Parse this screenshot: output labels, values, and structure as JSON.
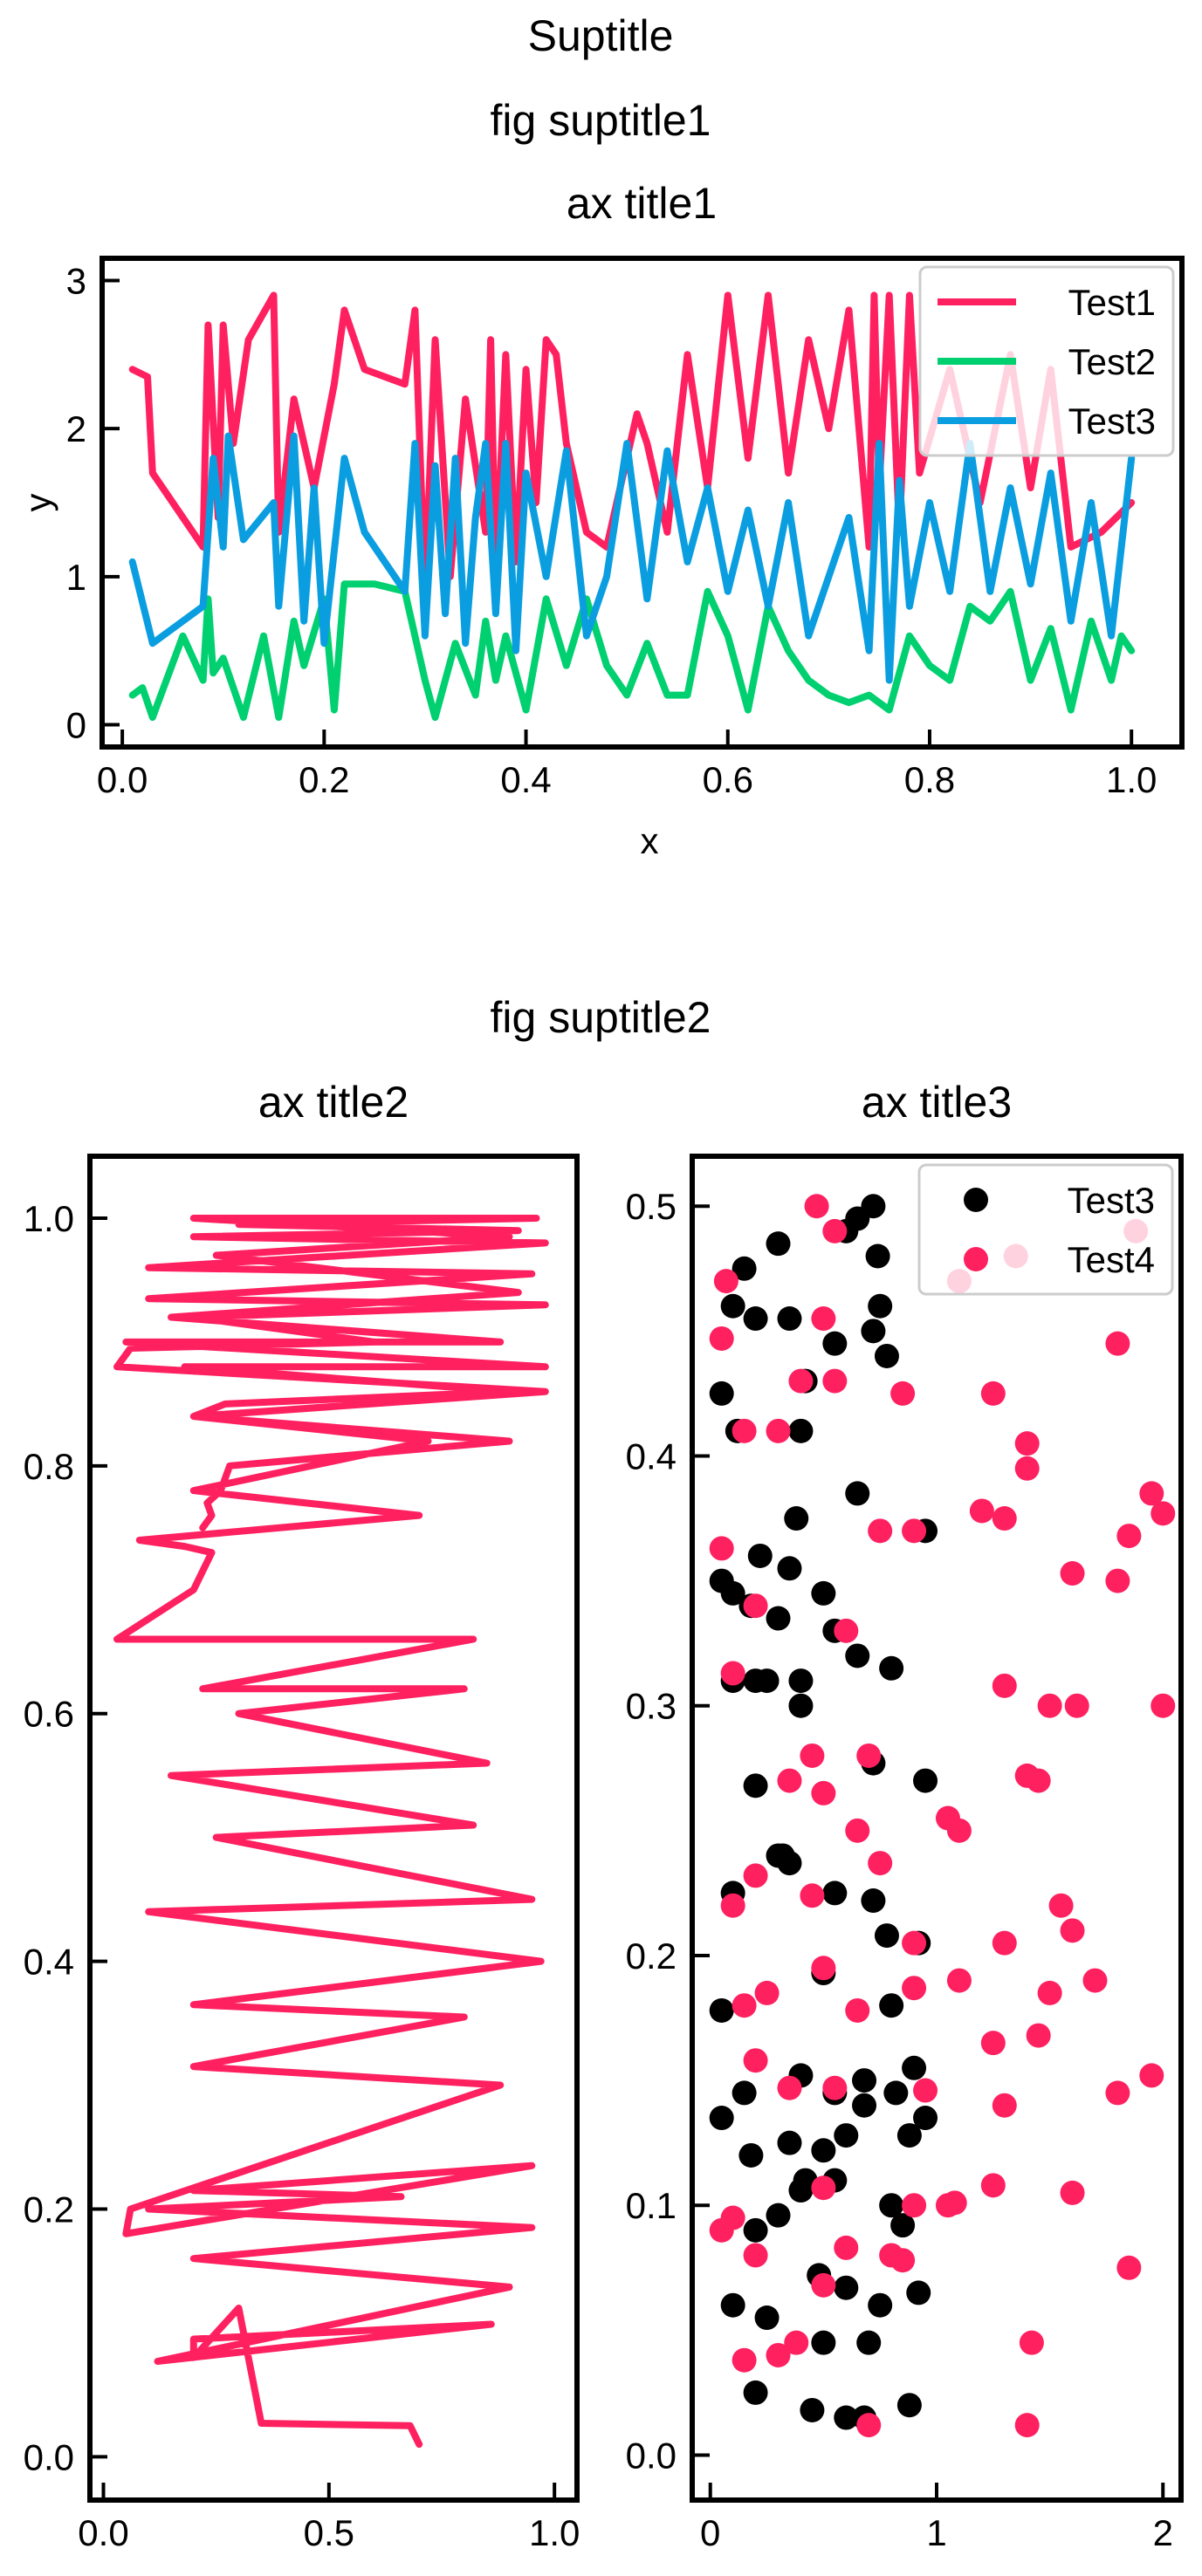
{
  "figure": {
    "suptitle": "Suptitle",
    "subfig1_title": "fig suptitle1",
    "subfig2_title": "fig suptitle2"
  },
  "colors": {
    "red": "#ff2060",
    "green": "#00d070",
    "blue": "#0a9ee0",
    "black": "#000000"
  },
  "chart_data": [
    {
      "type": "line",
      "title": "ax title1",
      "xlabel": "x",
      "ylabel": "y",
      "xlim": [
        -0.02,
        1.05
      ],
      "ylim": [
        -0.15,
        3.15
      ],
      "xticks": [
        0.0,
        0.2,
        0.4,
        0.6,
        0.8,
        1.0
      ],
      "xticklabels": [
        "0.0",
        "0.2",
        "0.4",
        "0.6",
        "0.8",
        "1.0"
      ],
      "yticks": [
        0,
        1,
        2,
        3
      ],
      "yticklabels": [
        "0",
        "1",
        "2",
        "3"
      ],
      "legend": {
        "position": "top-right",
        "entries": [
          "Test1",
          "Test2",
          "Test3"
        ]
      },
      "series": [
        {
          "name": "Test1",
          "color": "#ff2060",
          "x": [
            0.01,
            0.025,
            0.03,
            0.08,
            0.085,
            0.095,
            0.1,
            0.11,
            0.125,
            0.15,
            0.155,
            0.17,
            0.19,
            0.21,
            0.22,
            0.24,
            0.28,
            0.29,
            0.3,
            0.31,
            0.325,
            0.34,
            0.36,
            0.365,
            0.37,
            0.38,
            0.39,
            0.4,
            0.41,
            0.42,
            0.43,
            0.44,
            0.46,
            0.48,
            0.51,
            0.52,
            0.54,
            0.56,
            0.58,
            0.6,
            0.62,
            0.64,
            0.66,
            0.68,
            0.7,
            0.72,
            0.74,
            0.745,
            0.75,
            0.76,
            0.77,
            0.78,
            0.79,
            0.82,
            0.85,
            0.88,
            0.9,
            0.92,
            0.94,
            0.97,
            1.0
          ],
          "y": [
            2.4,
            2.35,
            1.7,
            1.2,
            2.7,
            1.4,
            2.7,
            1.9,
            2.6,
            2.9,
            1.3,
            2.2,
            1.6,
            2.3,
            2.8,
            2.4,
            2.3,
            2.8,
            0.9,
            2.6,
            1.0,
            2.2,
            1.3,
            2.6,
            1.0,
            2.5,
            1.1,
            2.4,
            1.5,
            2.6,
            2.5,
            1.9,
            1.3,
            1.2,
            2.1,
            1.9,
            1.3,
            2.5,
            1.6,
            2.9,
            1.8,
            2.9,
            1.7,
            2.6,
            2.0,
            2.8,
            1.2,
            2.9,
            1.6,
            2.9,
            1.3,
            2.9,
            1.7,
            2.4,
            1.5,
            2.5,
            1.6,
            2.4,
            1.2,
            1.3,
            1.5
          ]
        },
        {
          "name": "Test2",
          "color": "#00d070",
          "x": [
            0.01,
            0.02,
            0.03,
            0.06,
            0.08,
            0.085,
            0.09,
            0.1,
            0.12,
            0.14,
            0.155,
            0.17,
            0.18,
            0.2,
            0.21,
            0.22,
            0.25,
            0.28,
            0.3,
            0.31,
            0.33,
            0.35,
            0.36,
            0.37,
            0.38,
            0.4,
            0.42,
            0.44,
            0.46,
            0.48,
            0.5,
            0.52,
            0.54,
            0.56,
            0.58,
            0.6,
            0.62,
            0.64,
            0.66,
            0.68,
            0.7,
            0.72,
            0.74,
            0.76,
            0.78,
            0.8,
            0.82,
            0.84,
            0.86,
            0.88,
            0.9,
            0.92,
            0.94,
            0.96,
            0.98,
            0.99,
            1.0
          ],
          "y": [
            0.2,
            0.25,
            0.05,
            0.6,
            0.3,
            0.85,
            0.35,
            0.45,
            0.05,
            0.6,
            0.05,
            0.7,
            0.4,
            0.85,
            0.1,
            0.95,
            0.95,
            0.9,
            0.3,
            0.05,
            0.55,
            0.2,
            0.7,
            0.3,
            0.6,
            0.1,
            0.85,
            0.4,
            0.85,
            0.4,
            0.2,
            0.55,
            0.2,
            0.2,
            0.9,
            0.6,
            0.1,
            0.8,
            0.5,
            0.3,
            0.2,
            0.15,
            0.2,
            0.1,
            0.6,
            0.4,
            0.3,
            0.8,
            0.7,
            0.9,
            0.3,
            0.65,
            0.1,
            0.7,
            0.3,
            0.6,
            0.5
          ]
        },
        {
          "name": "Test3",
          "color": "#0a9ee0",
          "x": [
            0.01,
            0.03,
            0.08,
            0.09,
            0.1,
            0.105,
            0.12,
            0.15,
            0.155,
            0.17,
            0.18,
            0.19,
            0.2,
            0.22,
            0.24,
            0.28,
            0.29,
            0.3,
            0.31,
            0.32,
            0.33,
            0.34,
            0.35,
            0.36,
            0.37,
            0.38,
            0.39,
            0.4,
            0.42,
            0.44,
            0.46,
            0.48,
            0.5,
            0.52,
            0.54,
            0.56,
            0.58,
            0.6,
            0.62,
            0.64,
            0.66,
            0.68,
            0.7,
            0.72,
            0.74,
            0.75,
            0.76,
            0.77,
            0.78,
            0.8,
            0.82,
            0.84,
            0.86,
            0.88,
            0.9,
            0.92,
            0.94,
            0.96,
            0.98,
            1.0
          ],
          "y": [
            1.1,
            0.55,
            0.8,
            1.8,
            1.2,
            1.95,
            1.25,
            1.5,
            0.8,
            1.95,
            0.7,
            1.6,
            0.55,
            1.8,
            1.3,
            0.9,
            1.9,
            0.6,
            1.75,
            0.75,
            1.8,
            0.55,
            1.4,
            1.9,
            0.75,
            1.9,
            0.5,
            1.7,
            1.0,
            1.85,
            0.6,
            1.0,
            1.9,
            0.85,
            1.85,
            1.1,
            1.6,
            0.9,
            1.45,
            0.8,
            1.5,
            0.6,
            1.0,
            1.4,
            0.5,
            1.9,
            0.3,
            1.65,
            0.8,
            1.5,
            0.9,
            1.9,
            0.9,
            1.6,
            0.95,
            1.7,
            0.7,
            1.5,
            0.6,
            1.8
          ]
        }
      ]
    },
    {
      "type": "line",
      "title": "ax title2",
      "xlim": [
        -0.03,
        1.05
      ],
      "ylim": [
        -0.035,
        1.05
      ],
      "xticks": [
        0.0,
        0.5,
        1.0
      ],
      "xticklabels": [
        "0.0",
        "0.5",
        "1.0"
      ],
      "yticks": [
        0.0,
        0.2,
        0.4,
        0.6,
        0.8,
        1.0
      ],
      "yticklabels": [
        "0.0",
        "0.2",
        "0.4",
        "0.6",
        "0.8",
        "1.0"
      ],
      "series": [
        {
          "name": "",
          "color": "#ff2060",
          "x": [
            0.7,
            0.68,
            0.35,
            0.3,
            0.2,
            0.2,
            0.86,
            0.12,
            0.9,
            0.2,
            0.95,
            0.1,
            0.66,
            0.2,
            0.95,
            0.05,
            0.06,
            0.88,
            0.2,
            0.8,
            0.2,
            0.97,
            0.1,
            0.95,
            0.25,
            0.82,
            0.15,
            0.85,
            0.3,
            0.8,
            0.22,
            0.82,
            0.03,
            0.2,
            0.24,
            0.18,
            0.08,
            0.7,
            0.2,
            0.72,
            0.2,
            0.98,
            0.03,
            0.06,
            0.6,
            0.2,
            0.98,
            0.1,
            0.95,
            0.1,
            0.98,
            0.2,
            0.92,
            0.3,
            0.96,
            0.2,
            0.9,
            0.25,
            0.92,
            0.15,
            0.88,
            0.05,
            0.98,
            0.18,
            0.9,
            0.27,
            0.2,
            0.9,
            0.28,
            0.26,
            0.23,
            0.24,
            0.22
          ],
          "y": [
            0.01,
            0.025,
            0.027,
            0.12,
            0.08,
            0.095,
            0.107,
            0.077,
            0.137,
            0.16,
            0.185,
            0.2,
            0.21,
            0.215,
            0.235,
            0.18,
            0.2,
            0.3,
            0.315,
            0.355,
            0.365,
            0.4,
            0.44,
            0.45,
            0.5,
            0.51,
            0.55,
            0.56,
            0.6,
            0.62,
            0.62,
            0.66,
            0.66,
            0.7,
            0.73,
            0.735,
            0.74,
            0.76,
            0.78,
            0.82,
            0.84,
            0.86,
            0.88,
            0.895,
            0.9,
            0.92,
            0.93,
            0.935,
            0.955,
            0.96,
            0.98,
            0.985,
            0.99,
            0.995,
            1.0,
            1.0,
            0.985,
            0.97,
            0.94,
            0.92,
            0.9,
            0.9,
            0.88,
            0.88,
            0.86,
            0.85,
            0.84,
            0.82,
            0.8,
            0.78,
            0.77,
            0.76,
            0.75
          ]
        }
      ]
    },
    {
      "type": "scatter",
      "title": "ax title3",
      "xlim": [
        -0.08,
        2.08
      ],
      "ylim": [
        -0.018,
        0.52
      ],
      "xticks": [
        0,
        1,
        2
      ],
      "xticklabels": [
        "0",
        "1",
        "2"
      ],
      "yticks": [
        0.0,
        0.1,
        0.2,
        0.3,
        0.4,
        0.5
      ],
      "yticklabels": [
        "0.0",
        "0.1",
        "0.2",
        "0.3",
        "0.4",
        "0.5"
      ],
      "legend": {
        "position": "top-right",
        "entries": [
          "Test3",
          "Test4"
        ]
      },
      "series": [
        {
          "name": "Test3",
          "color": "#000000",
          "x": [
            0.72,
            0.65,
            0.74,
            0.6,
            0.3,
            0.75,
            0.42,
            0.35,
            0.15,
            0.05,
            0.4,
            0.72,
            0.55,
            0.1,
            0.2,
            0.95,
            0.78,
            0.12,
            0.38,
            0.5,
            0.65,
            0.22,
            0.05,
            0.35,
            0.18,
            0.1,
            0.3,
            0.65,
            0.55,
            0.4,
            0.25,
            0.8,
            0.1,
            0.2,
            0.4,
            0.95,
            0.72,
            0.3,
            0.2,
            0.35,
            0.1,
            0.32,
            0.55,
            0.92,
            0.78,
            0.72,
            0.05,
            0.5,
            0.8,
            0.4,
            0.55,
            0.9,
            0.68,
            0.15,
            0.05,
            0.82,
            0.6,
            0.35,
            0.5,
            0.88,
            0.95,
            0.68,
            0.42,
            0.8,
            0.18,
            0.55,
            0.4,
            0.3,
            0.2,
            0.85,
            0.6,
            0.75,
            0.48,
            0.5,
            0.92,
            0.7,
            0.1,
            0.25,
            0.88,
            0.68,
            0.6,
            0.2,
            0.45
          ],
          "y": [
            0.5,
            0.495,
            0.48,
            0.49,
            0.485,
            0.46,
            0.43,
            0.455,
            0.475,
            0.425,
            0.41,
            0.45,
            0.445,
            0.46,
            0.455,
            0.37,
            0.44,
            0.41,
            0.375,
            0.345,
            0.385,
            0.36,
            0.35,
            0.355,
            0.34,
            0.345,
            0.335,
            0.32,
            0.33,
            0.31,
            0.31,
            0.315,
            0.31,
            0.31,
            0.3,
            0.27,
            0.277,
            0.24,
            0.268,
            0.237,
            0.225,
            0.24,
            0.225,
            0.205,
            0.208,
            0.222,
            0.178,
            0.193,
            0.18,
            0.152,
            0.145,
            0.155,
            0.14,
            0.145,
            0.135,
            0.145,
            0.128,
            0.125,
            0.122,
            0.128,
            0.135,
            0.15,
            0.11,
            0.1,
            0.12,
            0.11,
            0.106,
            0.096,
            0.09,
            0.092,
            0.067,
            0.06,
            0.072,
            0.045,
            0.065,
            0.045,
            0.06,
            0.055,
            0.02,
            0.015,
            0.015,
            0.025,
            0.018
          ]
        },
        {
          "name": "Test4",
          "color": "#ff2060",
          "x": [
            0.47,
            0.55,
            0.07,
            0.05,
            0.15,
            1.1,
            1.35,
            1.4,
            0.5,
            0.3,
            0.55,
            0.4,
            0.85,
            1.25,
            1.4,
            1.88,
            1.8,
            1.95,
            2.0,
            1.3,
            1.6,
            1.85,
            1.8,
            0.05,
            0.2,
            1.2,
            0.75,
            0.9,
            1.5,
            0.6,
            0.7,
            1.05,
            0.1,
            0.45,
            0.35,
            1.3,
            1.45,
            2.0,
            1.62,
            0.5,
            1.1,
            1.4,
            0.2,
            0.65,
            0.75,
            0.9,
            0.45,
            0.9,
            1.1,
            1.3,
            1.55,
            1.6,
            0.1,
            0.15,
            1.5,
            1.7,
            1.25,
            1.45,
            0.25,
            0.5,
            0.65,
            0.95,
            0.55,
            1.8,
            0.35,
            1.3,
            1.05,
            0.9,
            0.1,
            0.5,
            1.25,
            0.8,
            1.6,
            0.05,
            0.85,
            0.2,
            0.6,
            1.85,
            1.42,
            0.7,
            0.38,
            1.4,
            0.15,
            1.08,
            1.95,
            0.3,
            0.5,
            0.2
          ],
          "y": [
            0.5,
            0.49,
            0.47,
            0.447,
            0.41,
            0.47,
            0.48,
            0.405,
            0.455,
            0.41,
            0.43,
            0.43,
            0.425,
            0.425,
            0.395,
            0.49,
            0.445,
            0.385,
            0.377,
            0.375,
            0.353,
            0.368,
            0.35,
            0.363,
            0.34,
            0.378,
            0.37,
            0.37,
            0.3,
            0.33,
            0.28,
            0.255,
            0.313,
            0.28,
            0.27,
            0.308,
            0.27,
            0.3,
            0.3,
            0.265,
            0.25,
            0.272,
            0.232,
            0.25,
            0.237,
            0.205,
            0.224,
            0.187,
            0.19,
            0.205,
            0.22,
            0.21,
            0.22,
            0.18,
            0.185,
            0.19,
            0.165,
            0.168,
            0.185,
            0.195,
            0.178,
            0.146,
            0.147,
            0.145,
            0.147,
            0.14,
            0.1,
            0.1,
            0.095,
            0.107,
            0.108,
            0.08,
            0.105,
            0.09,
            0.078,
            0.08,
            0.083,
            0.075,
            0.045,
            0.012,
            0.045,
            0.012,
            0.038,
            0.101,
            0.152,
            0.04,
            0.068,
            0.158
          ]
        }
      ]
    }
  ]
}
